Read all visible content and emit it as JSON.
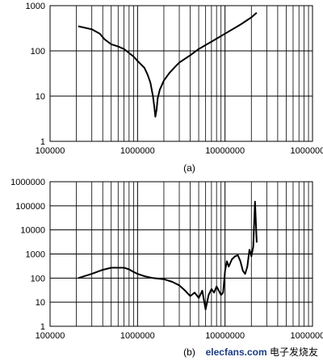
{
  "chart_data": [
    {
      "type": "line",
      "caption": "(a)",
      "x_scale": "log",
      "y_scale": "log",
      "xlim": [
        100000,
        100000000
      ],
      "ylim": [
        1,
        1000
      ],
      "x_ticks": [
        "100000",
        "1000000",
        "10000000",
        "100000000"
      ],
      "y_ticks": [
        "1",
        "10",
        "100",
        "1000"
      ],
      "grid": true,
      "series": [
        {
          "x": [
            210000,
            300000,
            370000,
            420000,
            500000,
            600000,
            700000,
            800000,
            900000,
            1000000,
            1100000,
            1200000,
            1300000,
            1400000,
            1500000,
            1550000,
            1600000,
            1650000,
            1700000,
            1800000,
            2000000,
            2300000,
            2700000,
            3000000,
            4000000,
            5000000,
            7000000,
            10000000,
            15000000,
            20000000,
            23000000
          ],
          "y": [
            350,
            300,
            240,
            180,
            140,
            125,
            110,
            90,
            75,
            60,
            50,
            42,
            30,
            20,
            10,
            6,
            3.5,
            5,
            9,
            14,
            22,
            32,
            45,
            55,
            80,
            110,
            160,
            240,
            380,
            550,
            700
          ]
        }
      ]
    },
    {
      "type": "line",
      "caption": "(b)",
      "x_scale": "log",
      "y_scale": "log",
      "xlim": [
        100000,
        100000000
      ],
      "ylim": [
        1,
        1000000
      ],
      "x_ticks": [
        "100000",
        "1000000",
        "10000000",
        "100000000"
      ],
      "y_ticks": [
        "1",
        "10",
        "100",
        "1000",
        "10000",
        "100000",
        "1000000"
      ],
      "grid": true,
      "series": [
        {
          "x": [
            210000,
            300000,
            400000,
            500000,
            700000,
            800000,
            900000,
            1000000,
            1200000,
            1500000,
            2000000,
            2500000,
            3000000,
            3500000,
            4000000,
            4500000,
            5000000,
            5500000,
            6000000,
            6500000,
            7000000,
            7500000,
            8000000,
            8500000,
            9000000,
            9500000,
            10000000,
            10500000,
            11000000,
            12000000,
            13000000,
            14000000,
            15000000,
            16000000,
            17000000,
            18000000,
            19000000,
            20000000,
            21000000,
            22000000,
            23000000
          ],
          "y": [
            100,
            150,
            220,
            270,
            270,
            230,
            180,
            150,
            120,
            100,
            90,
            70,
            50,
            30,
            18,
            25,
            15,
            30,
            5,
            20,
            35,
            25,
            45,
            30,
            20,
            25,
            200,
            500,
            300,
            600,
            800,
            900,
            500,
            200,
            150,
            300,
            1500,
            800,
            2000,
            150000,
            3000
          ]
        }
      ]
    }
  ],
  "watermark": {
    "brand": "elecfans",
    "domain": ".com",
    "cn": "电子发烧友"
  }
}
